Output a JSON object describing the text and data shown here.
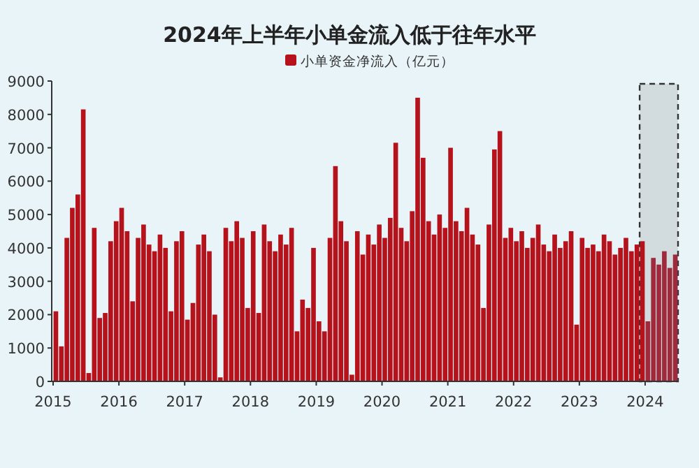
{
  "chart_data": {
    "type": "bar",
    "title": "2024年上半年小单金流入低于往年水平",
    "legend": "top",
    "series": [
      {
        "name": "小单资金净流入（亿元）",
        "color": "#b5121b",
        "x": [
          "2015-01",
          "2015-02",
          "2015-03",
          "2015-04",
          "2015-05",
          "2015-06",
          "2015-07",
          "2015-08",
          "2015-09",
          "2015-10",
          "2015-11",
          "2015-12",
          "2016-01",
          "2016-02",
          "2016-03",
          "2016-04",
          "2016-05",
          "2016-06",
          "2016-07",
          "2016-08",
          "2016-09",
          "2016-10",
          "2016-11",
          "2016-12",
          "2017-01",
          "2017-02",
          "2017-03",
          "2017-04",
          "2017-05",
          "2017-06",
          "2017-07",
          "2017-08",
          "2017-09",
          "2017-10",
          "2017-11",
          "2017-12",
          "2018-01",
          "2018-02",
          "2018-03",
          "2018-04",
          "2018-05",
          "2018-06",
          "2018-07",
          "2018-08",
          "2018-09",
          "2018-10",
          "2018-11",
          "2018-12",
          "2019-01",
          "2019-02",
          "2019-03",
          "2019-04",
          "2019-05",
          "2019-06",
          "2019-07",
          "2019-08",
          "2019-09",
          "2019-10",
          "2019-11",
          "2019-12",
          "2020-01",
          "2020-02",
          "2020-03",
          "2020-04",
          "2020-05",
          "2020-06",
          "2020-07",
          "2020-08",
          "2020-09",
          "2020-10",
          "2020-11",
          "2020-12",
          "2021-01",
          "2021-02",
          "2021-03",
          "2021-04",
          "2021-05",
          "2021-06",
          "2021-07",
          "2021-08",
          "2021-09",
          "2021-10",
          "2021-11",
          "2021-12",
          "2022-01",
          "2022-02",
          "2022-03",
          "2022-04",
          "2022-05",
          "2022-06",
          "2022-07",
          "2022-08",
          "2022-09",
          "2022-10",
          "2022-11",
          "2022-12",
          "2023-01",
          "2023-02",
          "2023-03",
          "2023-04",
          "2023-05",
          "2023-06",
          "2023-07",
          "2023-08",
          "2023-09",
          "2023-10",
          "2023-11",
          "2023-12"
        ],
        "values": [
          2100,
          1050,
          4300,
          5200,
          5600,
          8150,
          250,
          4600,
          1900,
          2050,
          4200,
          4800,
          5200,
          4500,
          2400,
          4300,
          4700,
          4100,
          3900,
          4400,
          4000,
          2100,
          4200,
          4500,
          1850,
          2350,
          4100,
          4400,
          3900,
          2000,
          120,
          4600,
          4200,
          4800,
          4300,
          2200,
          4500,
          2050,
          4700,
          4200,
          3900,
          4400,
          4100,
          4600,
          1500,
          2450,
          2200,
          4000,
          1800,
          1500,
          4300,
          6450,
          4800,
          4200,
          200,
          4500,
          3800,
          4400,
          4100,
          4700,
          4300,
          4900,
          7150,
          4600,
          4200,
          5100,
          8500,
          6700,
          4800,
          4400,
          5000,
          4600,
          7000,
          4800,
          4500,
          5200,
          4400,
          4100,
          2200,
          4700,
          6950,
          7500,
          4300,
          4600,
          4200,
          4500,
          4000,
          4300,
          4700,
          4100,
          3900,
          4400,
          4000,
          4200,
          4500,
          1700,
          4300,
          4000,
          4100,
          3900,
          4400,
          4200,
          3800,
          4000,
          4300,
          3900,
          4100,
          4200
        ]
      },
      {
        "color": "#9e2a3c",
        "x": [
          "2024-01",
          "2024-02",
          "2024-03",
          "2024-04",
          "2024-05",
          "2024-06"
        ],
        "values": [
          1800,
          3700,
          3500,
          3900,
          3400,
          3800
        ]
      }
    ],
    "xlim": [
      "2015-01",
      "2024-07"
    ],
    "xticks": [
      {
        "value": "2015-01",
        "label": "2015"
      },
      {
        "value": "2016-01",
        "label": "2016"
      },
      {
        "value": "2017-01",
        "label": "2017"
      },
      {
        "value": "2018-01",
        "label": "2018"
      },
      {
        "value": "2019-01",
        "label": "2019"
      },
      {
        "value": "2020-01",
        "label": "2020"
      },
      {
        "value": "2021-01",
        "label": "2021"
      },
      {
        "value": "2022-01",
        "label": "2022"
      },
      {
        "value": "2023-01",
        "label": "2023"
      },
      {
        "value": "2024-01",
        "label": "2024"
      }
    ],
    "ylim": [
      0,
      9000
    ],
    "yticks": [
      0,
      1000,
      2000,
      3000,
      4000,
      5000,
      6000,
      7000,
      8000,
      9000
    ],
    "bands": [
      {
        "axis": "x",
        "from": "2023-12",
        "to": "2024-07",
        "color": "#333333"
      }
    ]
  }
}
